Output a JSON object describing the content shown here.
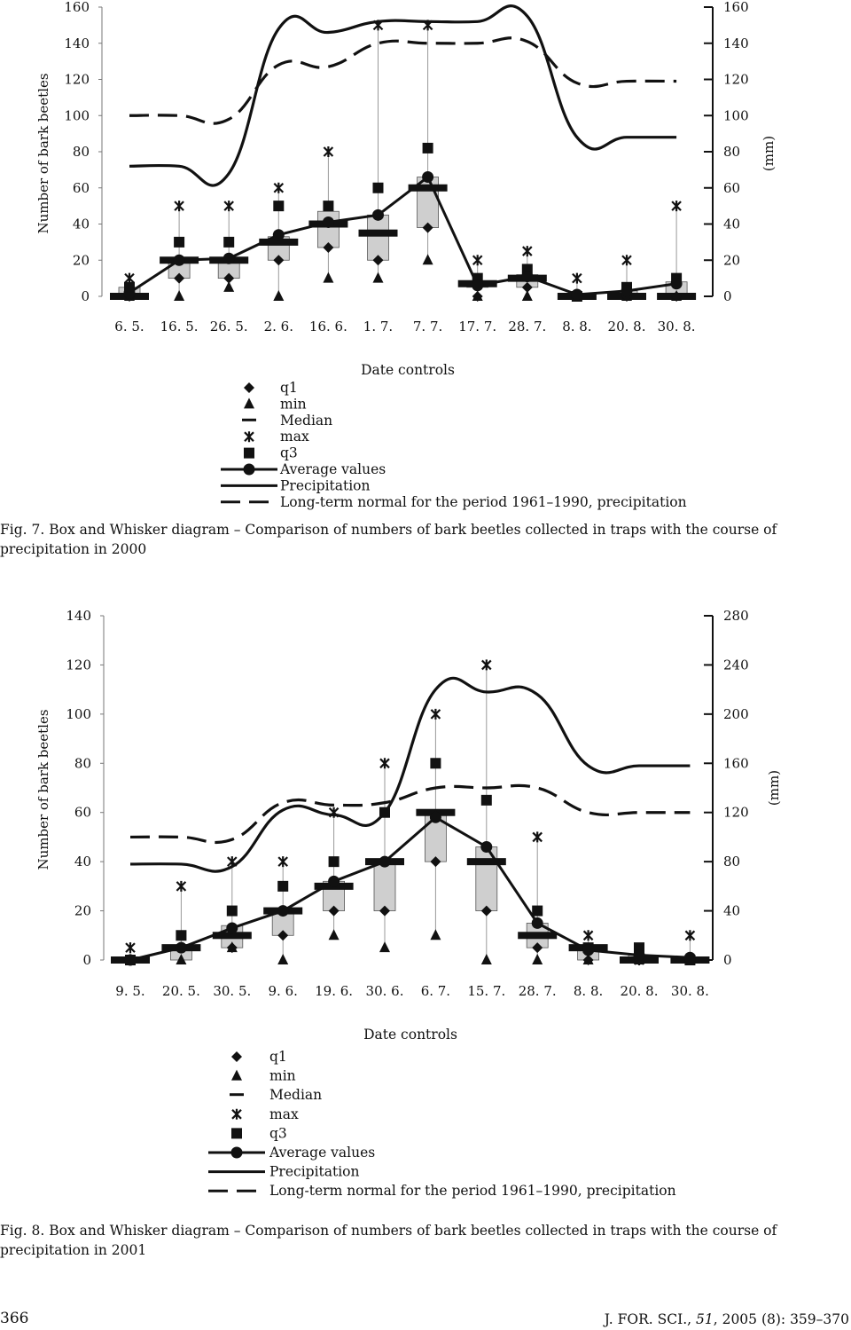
{
  "chart_data": [
    {
      "type": "box-whisker-line",
      "figure_label": "Fig. 7.",
      "caption": "Box and Whisker diagram – Comparison of numbers of bark beetles collected in traps with the course of precipitation in 2000",
      "xlabel": "Date controls",
      "ylabel_left": "Number of bark beetles",
      "ylabel_right": "(mm)",
      "ylim_left": [
        0,
        160
      ],
      "ylim_right": [
        0,
        160
      ],
      "yticks_left": [
        "0",
        "20",
        "40",
        "60",
        "80",
        "100",
        "120",
        "140",
        "160"
      ],
      "yticks_right": [
        "0",
        "20",
        "40",
        "60",
        "80",
        "100",
        "120",
        "140",
        "160"
      ],
      "categories": [
        "6. 5.",
        "16. 5.",
        "26. 5.",
        "2. 6.",
        "16. 6.",
        "1. 7.",
        "7. 7.",
        "17. 7.",
        "28. 7.",
        "8. 8.",
        "20. 8.",
        "30. 8."
      ],
      "min": [
        0,
        0,
        5,
        0,
        10,
        10,
        20,
        0,
        0,
        0,
        0,
        0
      ],
      "q1": [
        0,
        10,
        10,
        20,
        27,
        20,
        38,
        0,
        5,
        0,
        0,
        0
      ],
      "median": [
        0,
        20,
        20,
        30,
        40,
        35,
        60,
        7,
        10,
        0,
        0,
        0
      ],
      "q3": [
        5,
        30,
        30,
        50,
        50,
        60,
        82,
        10,
        15,
        0,
        5,
        10
      ],
      "max": [
        10,
        50,
        50,
        60,
        80,
        150,
        150,
        20,
        25,
        10,
        20,
        50
      ],
      "average": [
        2,
        20,
        21,
        34,
        41,
        45,
        66,
        6,
        11,
        1,
        3,
        7
      ],
      "box_low": [
        0,
        10,
        10,
        20,
        27,
        20,
        38,
        5,
        5,
        0,
        0,
        0
      ],
      "box_high": [
        5,
        20,
        20,
        33,
        47,
        45,
        66,
        8,
        12,
        1,
        3,
        8
      ],
      "precipitation": [
        72,
        72,
        68,
        148,
        146,
        152,
        152,
        152,
        155,
        88,
        88,
        88
      ],
      "longterm_normal": [
        100,
        100,
        98,
        128,
        127,
        140,
        140,
        140,
        141,
        118,
        119,
        119
      ],
      "legend": [
        "q1",
        "min",
        "Median",
        "max",
        "q3",
        "Average values",
        "Precipitation",
        "Long-term normal for the period 1961–1990, precipitation"
      ]
    },
    {
      "type": "box-whisker-line",
      "figure_label": "Fig. 8.",
      "caption": "Box and Whisker diagram – Comparison of numbers of bark beetles collected in traps with the course of precipitation in 2001",
      "xlabel": "Date controls",
      "ylabel_left": "Number of bark beetles",
      "ylabel_right": "(mm)",
      "ylim_left": [
        0,
        140
      ],
      "ylim_right": [
        0,
        280
      ],
      "yticks_left": [
        "0",
        "20",
        "40",
        "60",
        "80",
        "100",
        "120",
        "140"
      ],
      "yticks_right": [
        "0",
        "40",
        "80",
        "120",
        "160",
        "200",
        "240",
        "280"
      ],
      "categories": [
        "9. 5.",
        "20. 5.",
        "30. 5.",
        "9. 6.",
        "19. 6.",
        "30. 6.",
        "6. 7.",
        "15. 7.",
        "28. 7.",
        "8. 8.",
        "20. 8.",
        "30. 8."
      ],
      "min": [
        0,
        0,
        5,
        0,
        10,
        5,
        10,
        0,
        0,
        0,
        0,
        0
      ],
      "q1": [
        0,
        5,
        5,
        10,
        20,
        20,
        40,
        20,
        5,
        0,
        0,
        0
      ],
      "median": [
        0,
        5,
        10,
        20,
        30,
        40,
        60,
        40,
        10,
        5,
        0,
        0
      ],
      "q3": [
        0,
        10,
        20,
        30,
        40,
        60,
        80,
        65,
        20,
        5,
        5,
        0
      ],
      "max": [
        5,
        30,
        40,
        40,
        60,
        80,
        100,
        120,
        50,
        10,
        0,
        10
      ],
      "average": [
        0,
        5,
        13,
        20,
        32,
        40,
        58,
        46,
        15,
        4,
        2,
        1
      ],
      "box_low": [
        0,
        0,
        5,
        10,
        20,
        20,
        40,
        20,
        5,
        0,
        0,
        0
      ],
      "box_high": [
        0,
        5,
        14,
        20,
        32,
        41,
        60,
        46,
        15,
        4,
        2,
        1
      ],
      "precipitation": [
        78,
        78,
        76,
        122,
        118,
        120,
        220,
        218,
        216,
        158,
        158,
        158
      ],
      "longterm_normal": [
        100,
        100,
        98,
        128,
        126,
        128,
        140,
        140,
        140,
        120,
        120,
        120
      ],
      "legend": [
        "q1",
        "min",
        "Median",
        "max",
        "q3",
        "Average values",
        "Precipitation",
        "Long-term normal for the period 1961–1990, precipitation"
      ]
    }
  ],
  "footer": {
    "page_number": "366",
    "journal_prefix": "J. FOR. SCI., ",
    "journal_volume": "51",
    "journal_suffix": ", 2005 (8): 359–370"
  }
}
